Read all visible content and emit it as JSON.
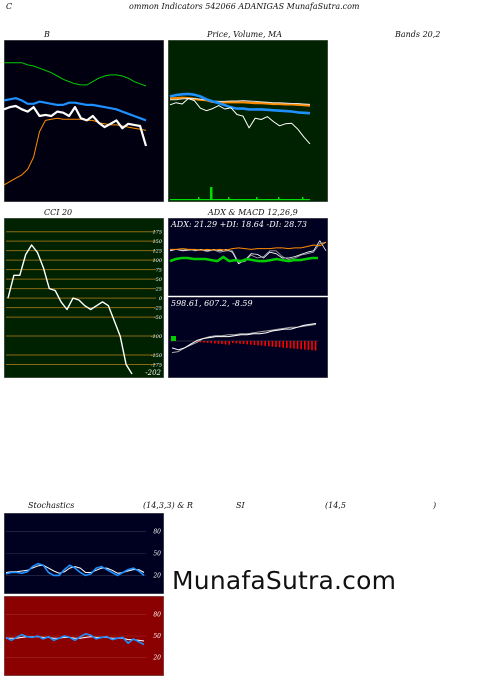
{
  "header": {
    "c": "C",
    "title": "ommon  Indicators 542066  ADANIGAS MunafaSutra.com"
  },
  "labels": {
    "b": "B",
    "price": "Price, Volume, MA",
    "bands": "Bands 20,2",
    "cci": "CCI 20",
    "adx_macd": "ADX  & MACD 12,26,9",
    "adx_values": "ADX: 21.29  +DI: 18.64  -DI: 28.73",
    "macd_values": "598.61,  607.2,  -8.59",
    "stoch": "Stochastics",
    "stoch_params": "(14,3,3) & R",
    "rsi": "SI",
    "rsi_params": "(14,5",
    "rsi_close": ")",
    "watermark": "MunafaSutra.com"
  },
  "colors": {
    "bands_bg": "#000010",
    "price_bg": "#002200",
    "cci_bg": "#002200",
    "adx_bg": "#000020",
    "stoch_bg": "#000020",
    "rsi_bg": "#8b0000",
    "cci_grid": "#8b6914",
    "price_line": "#ffffff",
    "ma_blue": "#1e90ff",
    "ma_green": "#00cc00",
    "band_orange": "#ff8c00",
    "volume": "#00dd00",
    "macd_hist": "#ff0000"
  },
  "chart_data": [
    {
      "type": "line",
      "title": "Bands 20,2",
      "series": [
        {
          "name": "upper",
          "color": "#00cc00",
          "values": [
            100,
            100,
            100,
            100,
            99.8,
            99.7,
            99.5,
            99.3,
            99.1,
            98.8,
            98.5,
            98.3,
            98.1,
            98,
            98,
            98.3,
            98.6,
            98.8,
            98.9,
            98.9,
            98.8,
            98.6,
            98.3,
            98.1,
            97.9
          ]
        },
        {
          "name": "middle",
          "color": "#1e90ff",
          "values": [
            96.6,
            96.7,
            96.8,
            96.6,
            96.3,
            96.3,
            96.5,
            96.4,
            96.3,
            96.2,
            96.2,
            96.4,
            96.4,
            96.3,
            96.2,
            96.2,
            96.1,
            96,
            95.9,
            95.8,
            95.6,
            95.4,
            95.2,
            95,
            94.8
          ]
        },
        {
          "name": "lower",
          "color": "#ff8c00",
          "values": [
            89,
            89.3,
            89.6,
            89.9,
            90.4,
            91.5,
            93.8,
            94.8,
            94.9,
            95,
            94.9,
            94.9,
            94.9,
            94.9,
            94.8,
            94.8,
            94.6,
            94.5,
            94.4,
            94.4,
            94.3,
            94.2,
            94.1,
            94.0,
            93.9
          ]
        },
        {
          "name": "price",
          "color": "#ffffff",
          "values": [
            95.8,
            96,
            96.1,
            95.8,
            95.6,
            96,
            95.2,
            95.3,
            95.2,
            95.6,
            95.5,
            95.2,
            96,
            95,
            94.8,
            95.2,
            94.6,
            94.2,
            94.5,
            94.8,
            94.1,
            94.5,
            94.4,
            94.3,
            92.5
          ]
        }
      ]
    },
    {
      "type": "line",
      "title": "Price, Volume, MA",
      "series": [
        {
          "name": "price",
          "color": "#ffffff",
          "values": [
            26,
            26.5,
            26.2,
            27.5,
            27,
            25.2,
            24.6,
            25.1,
            25.8,
            25,
            25.3,
            23.7,
            23.3,
            20.5,
            22.8,
            22.5,
            23.2,
            22,
            21,
            21.5,
            21.6,
            20.2,
            18.3,
            16.7
          ]
        },
        {
          "name": "ma-blue",
          "color": "#1e90ff",
          "values": [
            28,
            28.3,
            28.5,
            28.6,
            28.4,
            28,
            27.3,
            26.8,
            26.4,
            25.9,
            25.4,
            25.1,
            25.1,
            24.9,
            24.9,
            24.9,
            24.8,
            24.7,
            24.6,
            24.5,
            24.4,
            24.2,
            24.1,
            24
          ]
        },
        {
          "name": "ma-orange",
          "color": "#ff8c00",
          "values": [
            27.5,
            27.6,
            27.7,
            27.6,
            27.4,
            27.2,
            27.1,
            26.7,
            26.6,
            26.6,
            26.6,
            26.6,
            26.6,
            26.5,
            26.4,
            26.4,
            26.3,
            26.2,
            26.2,
            26.1,
            26.1,
            26,
            25.9,
            25.8
          ]
        },
        {
          "name": "ma-white",
          "color": "#dddddd",
          "values": [
            27.2,
            27.2,
            27.4,
            27.5,
            27.5,
            27.3,
            27.2,
            26.9,
            26.8,
            26.8,
            26.9,
            26.9,
            27,
            26.9,
            26.8,
            26.7,
            26.6,
            26.5,
            26.5,
            26.4,
            26.3,
            26.3,
            26.2,
            26.1
          ]
        }
      ],
      "volume": [
        0,
        0,
        0,
        0,
        0,
        0,
        0,
        0,
        0,
        0,
        0,
        0,
        0,
        0,
        0,
        0,
        0,
        0,
        0,
        0,
        0,
        0,
        0,
        0,
        0,
        0,
        0,
        0,
        0,
        0,
        0,
        0,
        0,
        0,
        0,
        0,
        0,
        0,
        0,
        0,
        0,
        0,
        0,
        0,
        0,
        0,
        0,
        0,
        0,
        0,
        0,
        0,
        0,
        0,
        0,
        0,
        0,
        0,
        0,
        0,
        0,
        0,
        0,
        0,
        0,
        0,
        0,
        0,
        0,
        0,
        0,
        0,
        0,
        0,
        0,
        0,
        0,
        0,
        0,
        0,
        0,
        0,
        0,
        0,
        0,
        0,
        0,
        0,
        0,
        0,
        0,
        0,
        0,
        0,
        0,
        0,
        0,
        0,
        0,
        0,
        0,
        0,
        0,
        0,
        0,
        0,
        0,
        0,
        0,
        0,
        0,
        0,
        0,
        0,
        0,
        0,
        0,
        0,
        0,
        0,
        0,
        0,
        0,
        0,
        0,
        0,
        0,
        0,
        0,
        0,
        0,
        0,
        0,
        0,
        0,
        0,
        0,
        0,
        0,
        0,
        0,
        0,
        0,
        0,
        0,
        0,
        0,
        0,
        0,
        0,
        0,
        0,
        0,
        0,
        0,
        0,
        0,
        0,
        0,
        0,
        0,
        0
      ]
    },
    {
      "type": "line",
      "title": "CCI 20",
      "ylim": [
        -200,
        190
      ],
      "yticks": [
        175,
        150,
        125,
        100,
        75,
        50,
        25,
        0,
        -25,
        -50,
        -100,
        -150,
        -175
      ],
      "series": [
        {
          "name": "cci",
          "color": "#ffffff",
          "values": [
            0,
            60,
            60,
            115,
            140,
            120,
            80,
            25,
            20,
            -10,
            -30,
            0,
            -5,
            -20,
            -30,
            -20,
            -10,
            -20,
            -60,
            -100,
            -175,
            -200
          ]
        }
      ],
      "last_label": "-202"
    },
    {
      "type": "line",
      "title": "ADX & MACD 12,26,9",
      "adx": {
        "adx": 21.29,
        "plus_di": 18.64,
        "minus_di": 28.73
      },
      "macd": {
        "macd": 598.61,
        "signal": 607.2,
        "histogram": -8.59
      }
    },
    {
      "type": "line",
      "title": "Stochastics (14,3,3)",
      "yticks": [
        80,
        50,
        20
      ],
      "series": [
        {
          "name": "k",
          "color": "#1e90ff",
          "values": [
            22,
            24,
            24,
            23,
            25,
            32,
            36,
            34,
            24,
            20,
            20,
            28,
            34,
            30,
            24,
            20,
            22,
            30,
            32,
            28,
            24,
            20,
            24,
            28,
            30,
            26,
            20
          ]
        },
        {
          "name": "d",
          "color": "#ffffff",
          "values": [
            24,
            25,
            25,
            26,
            27,
            30,
            33,
            34,
            30,
            26,
            23,
            25,
            30,
            32,
            30,
            24,
            24,
            27,
            30,
            30,
            27,
            23,
            24,
            26,
            28,
            28,
            24
          ]
        }
      ]
    },
    {
      "type": "line",
      "title": "RSI (14,5)",
      "yticks": [
        80,
        50,
        20
      ],
      "series": [
        {
          "name": "rsi",
          "color": "#1e90ff",
          "values": [
            48,
            44,
            48,
            52,
            49,
            48,
            50,
            46,
            49,
            44,
            47,
            50,
            48,
            44,
            49,
            53,
            51,
            46,
            48,
            49,
            45,
            47,
            48,
            40,
            46,
            42,
            38
          ]
        },
        {
          "name": "signal",
          "color": "#ffffff",
          "values": [
            47,
            47,
            47,
            48,
            49,
            49,
            49,
            48,
            48,
            47,
            47,
            48,
            48,
            47,
            47,
            48,
            49,
            48,
            48,
            48,
            47,
            47,
            47,
            45,
            45,
            44,
            43
          ]
        }
      ]
    }
  ]
}
